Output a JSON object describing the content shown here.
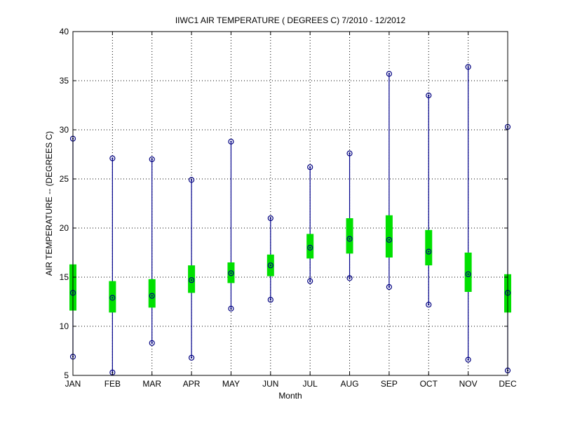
{
  "chart_data": {
    "type": "boxplot",
    "title": "IIWC1  AIR TEMPERATURE ( DEGREES C) 7/2010 - 12/2012",
    "xlabel": "Month",
    "ylabel": "AIR TEMPERATURE -- (DEGREES C)",
    "ylim": [
      5,
      40
    ],
    "yticks": [
      "5",
      "10",
      "15",
      "20",
      "25",
      "30",
      "35",
      "40"
    ],
    "grid": true,
    "categories": [
      "JAN",
      "FEB",
      "MAR",
      "APR",
      "MAY",
      "JUN",
      "JUL",
      "AUG",
      "SEP",
      "OCT",
      "NOV",
      "DEC"
    ],
    "series": [
      {
        "min": [
          6.9,
          5.3,
          8.3,
          6.8,
          11.8,
          12.7,
          14.6,
          14.9,
          14.0,
          12.2,
          6.6,
          5.5
        ],
        "q1": [
          11.6,
          11.4,
          11.9,
          13.4,
          14.4,
          15.1,
          16.9,
          17.4,
          17.0,
          16.2,
          13.5,
          11.4
        ],
        "median": [
          13.4,
          12.9,
          13.1,
          14.7,
          15.4,
          16.2,
          18.0,
          18.9,
          18.8,
          17.6,
          15.3,
          13.4
        ],
        "q3": [
          16.3,
          14.6,
          14.8,
          16.2,
          16.5,
          17.3,
          19.4,
          21.0,
          21.3,
          19.8,
          17.5,
          15.3
        ],
        "max": [
          29.1,
          27.1,
          27.0,
          24.9,
          28.8,
          21.0,
          26.2,
          27.6,
          35.7,
          33.5,
          36.4,
          30.3
        ]
      }
    ],
    "colors": {
      "whisker": "#00008b",
      "box": "#00e000",
      "marker": "#000080",
      "grid": "#000000"
    }
  }
}
